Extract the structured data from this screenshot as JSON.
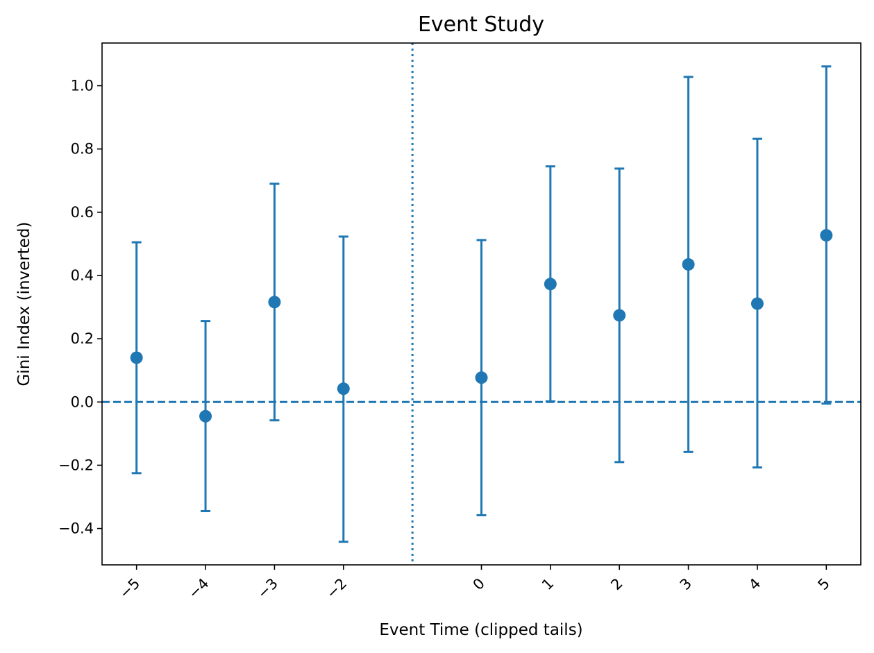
{
  "chart_data": {
    "type": "scatter",
    "title": "Event Study",
    "xlabel": "Event Time (clipped tails)",
    "ylabel": "Gini Index (inverted)",
    "xlim": [
      -5.5,
      5.5
    ],
    "ylim": [
      -0.515,
      1.135
    ],
    "xticks": [
      -5,
      -4,
      -3,
      -2,
      0,
      1,
      2,
      3,
      4,
      5
    ],
    "xtick_labels": [
      "−5",
      "−4",
      "−3",
      "−2",
      "0",
      "1",
      "2",
      "3",
      "4",
      "5"
    ],
    "yticks": [
      -0.4,
      -0.2,
      0.0,
      0.2,
      0.4,
      0.6,
      0.8,
      1.0
    ],
    "ytick_labels": [
      "−0.4",
      "−0.2",
      "0.0",
      "0.2",
      "0.4",
      "0.6",
      "0.8",
      "1.0"
    ],
    "reference_lines": {
      "horizontal_dashed_y": 0.0,
      "vertical_dotted_x": -1
    },
    "grid": false,
    "color": "#1f77b4",
    "series": [
      {
        "x": [
          -5,
          -4,
          -3,
          -2,
          0,
          1,
          2,
          3,
          4,
          5
        ],
        "y": [
          0.14,
          -0.045,
          0.316,
          0.042,
          0.077,
          0.373,
          0.274,
          0.435,
          0.311,
          0.527
        ],
        "ci_low": [
          -0.225,
          -0.345,
          -0.058,
          -0.442,
          -0.358,
          0.002,
          -0.19,
          -0.158,
          -0.207,
          -0.005
        ],
        "ci_high": [
          0.505,
          0.256,
          0.69,
          0.523,
          0.512,
          0.745,
          0.738,
          1.028,
          0.832,
          1.061
        ]
      }
    ]
  }
}
